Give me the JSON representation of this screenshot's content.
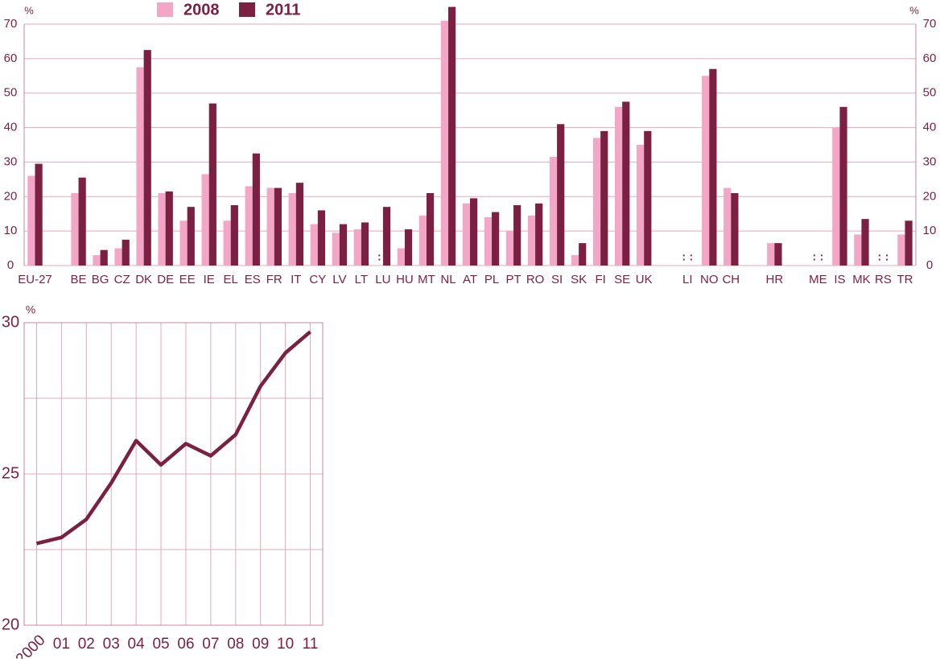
{
  "chart_data": [
    {
      "type": "bar",
      "y_label": "%",
      "categories": [
        "EU-27",
        null,
        "BE",
        "BG",
        "CZ",
        "DK",
        "DE",
        "EE",
        "IE",
        "EL",
        "ES",
        "FR",
        "IT",
        "CY",
        "LV",
        "LT",
        "LU",
        "HU",
        "MT",
        "NL",
        "AT",
        "PL",
        "PT",
        "RO",
        "SI",
        "SK",
        "FI",
        "SE",
        "UK",
        null,
        "LI",
        "NO",
        "CH",
        null,
        "HR",
        null,
        "ME",
        "IS",
        "MK",
        "RS",
        "TR"
      ],
      "series": [
        {
          "name": "2008",
          "color": "#f4a6c6",
          "values": [
            26,
            null,
            21,
            3,
            5,
            57.5,
            21,
            13,
            26.5,
            13,
            23,
            22.5,
            21,
            12,
            9.5,
            10.5,
            null,
            5,
            14.5,
            71,
            18,
            14,
            10,
            14.5,
            31.5,
            3,
            37,
            46,
            35,
            null,
            null,
            55,
            22.5,
            null,
            6.5,
            null,
            null,
            40,
            9,
            null,
            9
          ],
          "value_labels": [
            null,
            null,
            null,
            null,
            null,
            null,
            null,
            null,
            null,
            null,
            null,
            null,
            null,
            null,
            null,
            null,
            ":",
            null,
            null,
            null,
            null,
            null,
            null,
            null,
            null,
            null,
            null,
            null,
            null,
            null,
            ":",
            null,
            null,
            null,
            null,
            null,
            ":",
            null,
            null,
            ":",
            null
          ]
        },
        {
          "name": "2011",
          "color": "#7b1f43",
          "values": [
            29.5,
            null,
            25.5,
            4.5,
            7.5,
            62.5,
            21.5,
            17,
            47,
            17.5,
            32.5,
            22.5,
            24,
            16,
            12,
            12.5,
            17,
            10.5,
            21,
            75,
            19.5,
            15.5,
            17.5,
            18,
            41,
            6.5,
            39,
            47.5,
            39,
            null,
            null,
            57,
            21,
            null,
            6.5,
            null,
            null,
            46,
            13.5,
            null,
            13
          ],
          "value_labels": [
            null,
            null,
            null,
            null,
            null,
            null,
            null,
            null,
            null,
            null,
            null,
            null,
            null,
            null,
            null,
            null,
            null,
            null,
            null,
            null,
            null,
            null,
            null,
            null,
            null,
            null,
            null,
            null,
            null,
            null,
            ":",
            null,
            null,
            null,
            null,
            null,
            ":",
            null,
            null,
            ":",
            null
          ]
        }
      ],
      "ylim": [
        0,
        70
      ],
      "yticks": [
        0,
        10,
        20,
        30,
        40,
        50,
        60,
        70
      ],
      "grid": true,
      "legend": "top"
    },
    {
      "type": "line",
      "y_label": "%",
      "categories": [
        "2000",
        "01",
        "02",
        "03",
        "04",
        "05",
        "06",
        "07",
        "08",
        "09",
        "10",
        "11"
      ],
      "series": [
        {
          "name": null,
          "color": "#7b1f43",
          "values": [
            22.7,
            22.9,
            23.5,
            24.7,
            26.1,
            25.3,
            26.0,
            25.6,
            26.3,
            27.9,
            29.0,
            29.7
          ]
        }
      ],
      "ylim": [
        20,
        30
      ],
      "yticks": [
        20,
        25,
        30
      ],
      "yminor": [
        22.5,
        27.5
      ],
      "grid": true
    }
  ]
}
